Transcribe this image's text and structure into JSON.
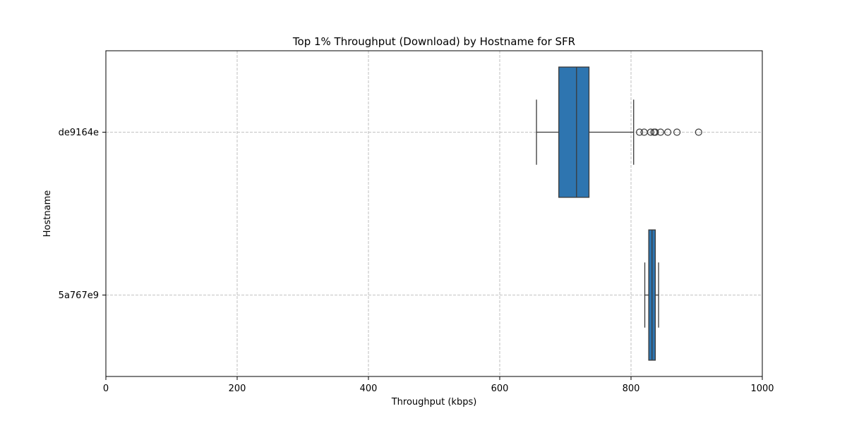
{
  "chart_data": {
    "type": "box",
    "orientation": "horizontal",
    "title": "Top 1% Throughput (Download) by Hostname for SFR",
    "xlabel": "Throughput (kbps)",
    "ylabel": "Hostname",
    "xlim": [
      0,
      1000
    ],
    "xticks": [
      0,
      200,
      400,
      600,
      800,
      1000
    ],
    "xtick_labels": [
      "0",
      "200",
      "400",
      "600",
      "800",
      "1000"
    ],
    "grid": true,
    "box_color": "#2e75b0",
    "line_color": "#3a3a3a",
    "categories": [
      "de9164e",
      "5a767e9"
    ],
    "boxes": [
      {
        "category": "de9164e",
        "whisker_low": 656,
        "q1": 690,
        "median": 717,
        "q3": 736,
        "whisker_high": 804,
        "outliers": [
          813,
          820,
          830,
          835,
          837,
          845,
          856,
          870,
          903
        ]
      },
      {
        "category": "5a767e9",
        "whisker_low": 821,
        "q1": 827,
        "median": 832,
        "q3": 837,
        "whisker_high": 842,
        "outliers": []
      }
    ]
  }
}
